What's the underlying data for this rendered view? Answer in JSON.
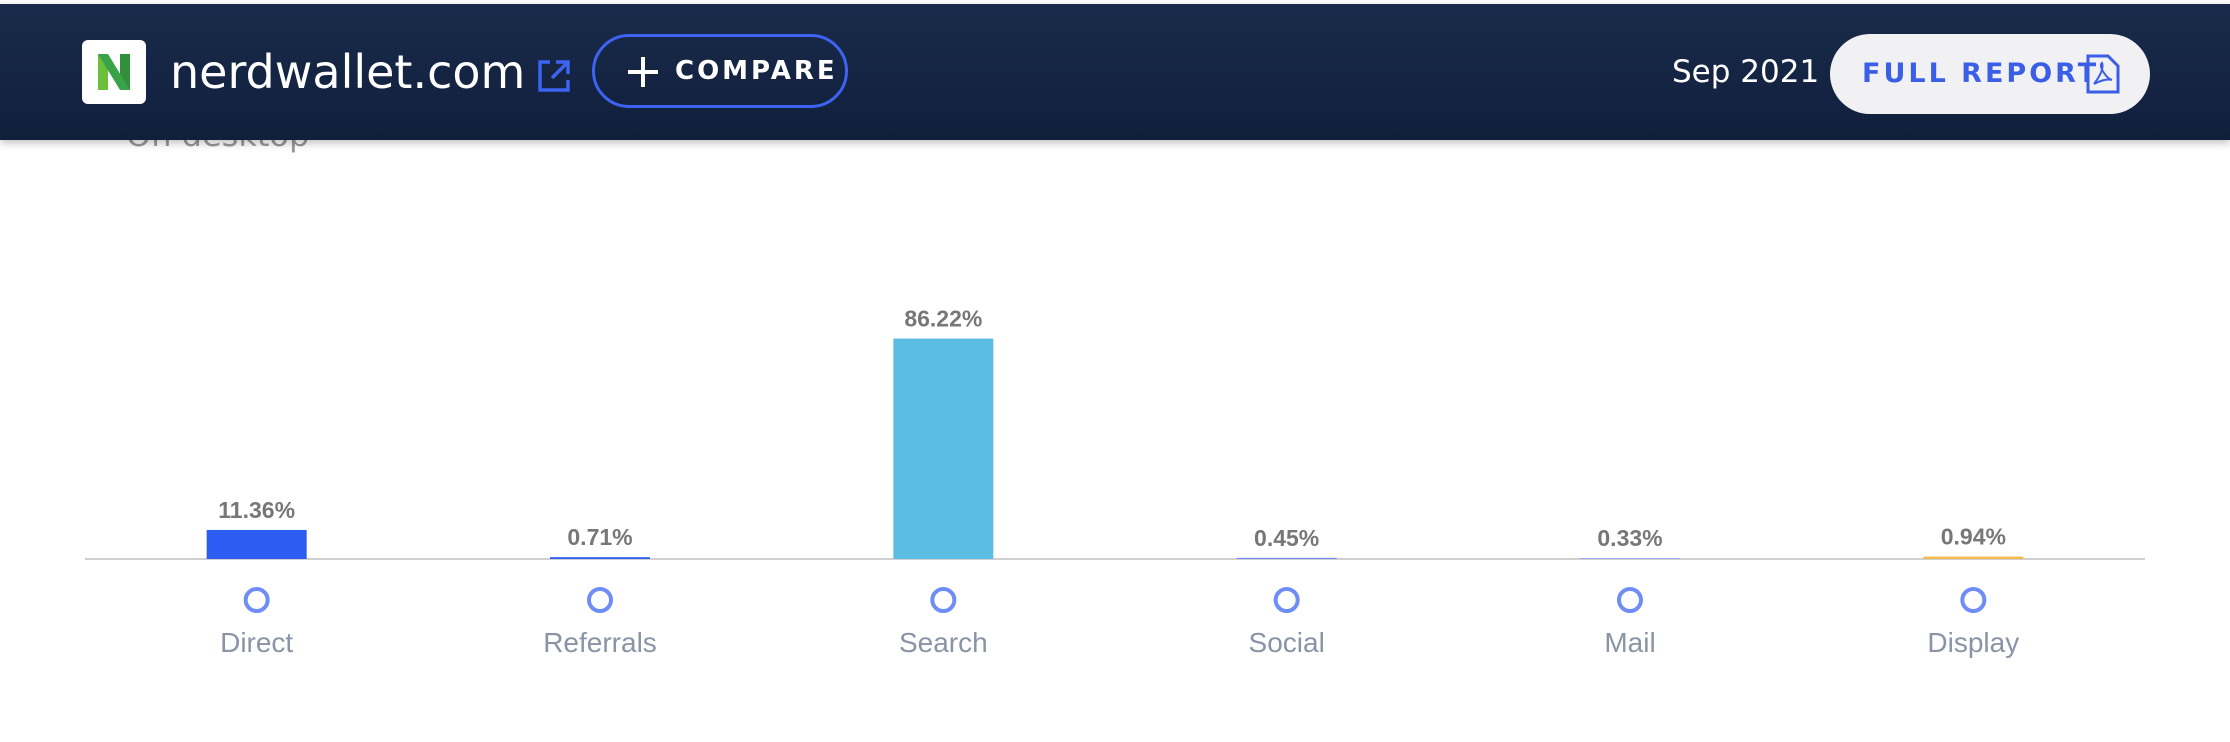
{
  "header": {
    "site": "nerdwallet.com",
    "compare": "COMPARE",
    "date": "Sep 2021",
    "report": "FULL REPORT"
  },
  "subtitle": "On desktop",
  "chart_data": {
    "type": "bar",
    "categories": [
      "Direct",
      "Referrals",
      "Search",
      "Social",
      "Mail",
      "Display"
    ],
    "values": [
      11.36,
      0.71,
      86.22,
      0.45,
      0.33,
      0.94
    ],
    "value_labels": [
      "11.36%",
      "0.71%",
      "86.22%",
      "0.45%",
      "0.33%",
      "0.94%"
    ],
    "colors": [
      "#2d5cf2",
      "#2d5cf2",
      "#5bbde1",
      "#6f8df5",
      "#8aa2f5",
      "#f3bb4c"
    ]
  }
}
